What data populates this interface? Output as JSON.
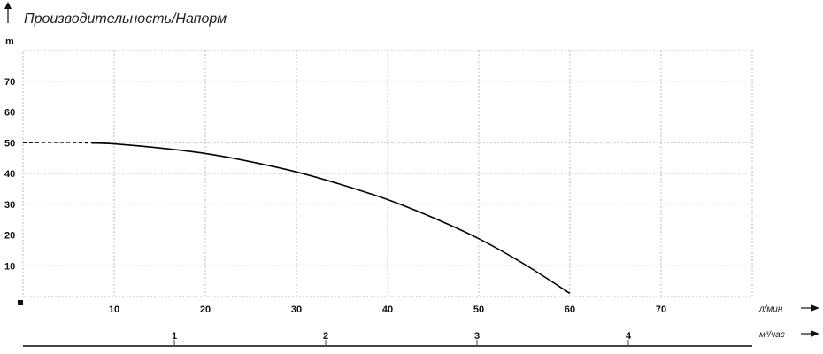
{
  "chart_data": {
    "type": "line",
    "title": "Производительность/Напорм",
    "ylabel": "m",
    "xlabel": "л/мин",
    "x2label": "м³/час",
    "xlim": [
      0,
      80
    ],
    "ylim": [
      0,
      80
    ],
    "grid": true,
    "x_ticks": [
      10,
      20,
      30,
      40,
      50,
      60,
      70
    ],
    "y_ticks": [
      10,
      20,
      30,
      40,
      50,
      60,
      70
    ],
    "x2_ticks": [
      1,
      2,
      3,
      4
    ],
    "series": [
      {
        "dashed_part": {
          "x": [
            0,
            2.5,
            5,
            7.5
          ],
          "y": [
            50,
            50.1,
            50.1,
            49.9
          ]
        },
        "x": [
          7.5,
          10,
          15,
          20,
          25,
          30,
          35,
          40,
          45,
          50,
          55,
          60
        ],
        "y": [
          49.9,
          49.6,
          48.3,
          46.5,
          43.8,
          40.5,
          36.3,
          31.5,
          25.6,
          18.8,
          10.5,
          1
        ],
        "color": "#000000"
      }
    ]
  }
}
